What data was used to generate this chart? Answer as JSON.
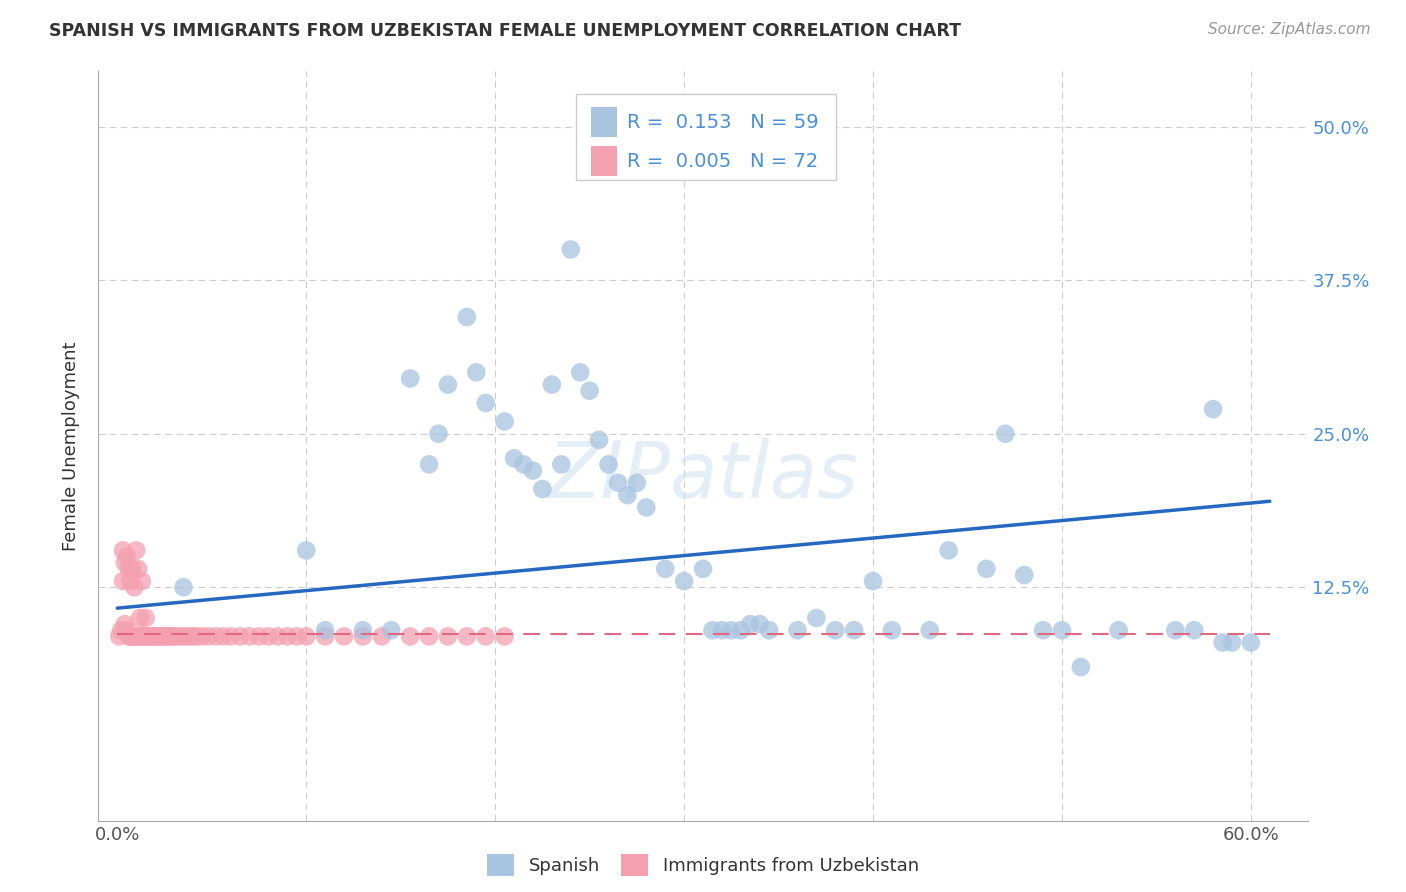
{
  "title": "SPANISH VS IMMIGRANTS FROM UZBEKISTAN FEMALE UNEMPLOYMENT CORRELATION CHART",
  "source": "Source: ZipAtlas.com",
  "ylabel": "Female Unemployment",
  "xlim": [
    -0.01,
    0.63
  ],
  "ylim": [
    -0.065,
    0.545
  ],
  "R_spanish": 0.153,
  "N_spanish": 59,
  "R_uzbekistan": 0.005,
  "N_uzbekistan": 72,
  "spanish_color": "#a8c4e0",
  "uzbekistan_color": "#f4a0b0",
  "trendline_spanish_color": "#2468c0",
  "trendline_uzbekistan_color": "#e06880",
  "watermark": "ZIPatlas",
  "spanish_x": [
    0.035,
    0.1,
    0.11,
    0.13,
    0.145,
    0.155,
    0.165,
    0.17,
    0.175,
    0.185,
    0.19,
    0.195,
    0.205,
    0.21,
    0.215,
    0.22,
    0.225,
    0.23,
    0.235,
    0.24,
    0.245,
    0.25,
    0.255,
    0.26,
    0.265,
    0.27,
    0.275,
    0.28,
    0.29,
    0.3,
    0.31,
    0.315,
    0.32,
    0.325,
    0.33,
    0.335,
    0.34,
    0.345,
    0.36,
    0.37,
    0.38,
    0.39,
    0.4,
    0.41,
    0.43,
    0.44,
    0.46,
    0.47,
    0.48,
    0.49,
    0.5,
    0.51,
    0.53,
    0.56,
    0.57,
    0.58,
    0.585,
    0.59,
    0.6
  ],
  "spanish_y": [
    0.125,
    0.155,
    0.09,
    0.09,
    0.09,
    0.295,
    0.225,
    0.25,
    0.29,
    0.345,
    0.3,
    0.275,
    0.26,
    0.23,
    0.225,
    0.22,
    0.205,
    0.29,
    0.225,
    0.4,
    0.3,
    0.285,
    0.245,
    0.225,
    0.21,
    0.2,
    0.21,
    0.19,
    0.14,
    0.13,
    0.14,
    0.09,
    0.09,
    0.09,
    0.09,
    0.095,
    0.095,
    0.09,
    0.09,
    0.1,
    0.09,
    0.09,
    0.13,
    0.09,
    0.09,
    0.155,
    0.14,
    0.25,
    0.135,
    0.09,
    0.09,
    0.06,
    0.09,
    0.09,
    0.09,
    0.27,
    0.08,
    0.08,
    0.08
  ],
  "uzbekistan_x": [
    0.001,
    0.002,
    0.003,
    0.003,
    0.004,
    0.004,
    0.005,
    0.005,
    0.006,
    0.006,
    0.007,
    0.007,
    0.008,
    0.008,
    0.009,
    0.009,
    0.01,
    0.01,
    0.011,
    0.011,
    0.012,
    0.012,
    0.013,
    0.013,
    0.014,
    0.014,
    0.015,
    0.015,
    0.016,
    0.017,
    0.018,
    0.019,
    0.02,
    0.021,
    0.022,
    0.023,
    0.024,
    0.025,
    0.026,
    0.027,
    0.028,
    0.029,
    0.03,
    0.032,
    0.034,
    0.036,
    0.038,
    0.04,
    0.042,
    0.045,
    0.048,
    0.052,
    0.056,
    0.06,
    0.065,
    0.07,
    0.075,
    0.08,
    0.085,
    0.09,
    0.095,
    0.1,
    0.11,
    0.12,
    0.13,
    0.14,
    0.155,
    0.165,
    0.175,
    0.185,
    0.195,
    0.205
  ],
  "uzbekistan_y": [
    0.085,
    0.09,
    0.155,
    0.13,
    0.145,
    0.095,
    0.15,
    0.09,
    0.14,
    0.085,
    0.13,
    0.085,
    0.14,
    0.085,
    0.125,
    0.085,
    0.155,
    0.085,
    0.085,
    0.14,
    0.085,
    0.1,
    0.085,
    0.13,
    0.085,
    0.085,
    0.085,
    0.1,
    0.085,
    0.085,
    0.085,
    0.085,
    0.085,
    0.085,
    0.085,
    0.085,
    0.085,
    0.085,
    0.085,
    0.085,
    0.085,
    0.085,
    0.085,
    0.085,
    0.085,
    0.085,
    0.085,
    0.085,
    0.085,
    0.085,
    0.085,
    0.085,
    0.085,
    0.085,
    0.085,
    0.085,
    0.085,
    0.085,
    0.085,
    0.085,
    0.085,
    0.085,
    0.085,
    0.085,
    0.085,
    0.085,
    0.085,
    0.085,
    0.085,
    0.085,
    0.085,
    0.085
  ],
  "trendline_spanish_x0": 0.0,
  "trendline_spanish_y0": 0.108,
  "trendline_spanish_x1": 0.61,
  "trendline_spanish_y1": 0.195,
  "trendline_uzbekistan_x0": 0.0,
  "trendline_uzbekistan_y0": 0.087,
  "trendline_uzbekistan_x1": 0.61,
  "trendline_uzbekistan_y1": 0.087
}
